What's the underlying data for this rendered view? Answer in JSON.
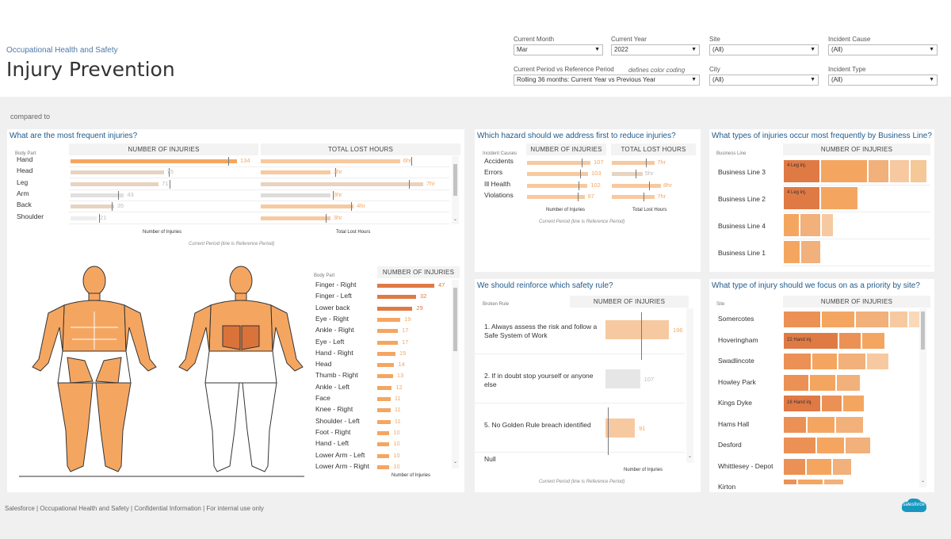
{
  "header": {
    "subtitle": "Occupational Health and Safety",
    "title": "Injury Prevention",
    "filters": [
      {
        "label": "Current Month",
        "value": "Mar"
      },
      {
        "label": "Current Year",
        "value": "2022"
      },
      {
        "label": "Site",
        "value": "(All)"
      },
      {
        "label": "Incident Cause",
        "value": "(All)"
      },
      {
        "label": "Current Period vs Reference Period",
        "value": "Rolling 36 months: Current Year vs Previous Year"
      },
      {
        "label": "City",
        "value": "(All)"
      },
      {
        "label": "Incident Type",
        "value": "(All)"
      }
    ],
    "hint": "defines color coding",
    "arrow": "▼"
  },
  "compared": "compared to",
  "colors": {
    "accent": "#f4a661",
    "light": "#f7c9a0",
    "pale": "#e8d3c0",
    "dark": "#e07a45",
    "deep": "#c85a2a",
    "title_blue": "#1f5a8c"
  },
  "injuries": {
    "title": "What are the most frequent injuries?",
    "dim_label": "Body Part",
    "col1": "NUMBER OF INJURIES",
    "col2": "TOTAL LOST HOURS",
    "axis1": "Number of Injuries",
    "axis2": "Total Lost Hours",
    "footnote": "Current Period  (line is Reference Period)",
    "rows": [
      {
        "label": "Hand",
        "value": "134",
        "hours": "6hr"
      },
      {
        "label": "Head",
        "value": "75",
        "hours": "3hr"
      },
      {
        "label": "Leg",
        "value": "71",
        "hours": "7hr"
      },
      {
        "label": "Arm",
        "value": "43",
        "hours": "3hr"
      },
      {
        "label": "Back",
        "value": "35",
        "hours": "4hr"
      },
      {
        "label": "Shoulder",
        "value": "21",
        "hours": "3hr"
      }
    ]
  },
  "bodyparts": {
    "dim_label": "Body Part",
    "col": "NUMBER OF INJURIES",
    "axis": "Number of Injuries",
    "rows": [
      {
        "label": "Finger - Right",
        "value": "47"
      },
      {
        "label": "Finger - Left",
        "value": "32"
      },
      {
        "label": "Lower back",
        "value": "29"
      },
      {
        "label": "Eye - Right",
        "value": "19"
      },
      {
        "label": "Ankle - Right",
        "value": "17"
      },
      {
        "label": "Eye - Left",
        "value": "17"
      },
      {
        "label": "Hand - Right",
        "value": "15"
      },
      {
        "label": "Head",
        "value": "14"
      },
      {
        "label": "Thumb - Right",
        "value": "13"
      },
      {
        "label": "Ankle - Left",
        "value": "12"
      },
      {
        "label": "Face",
        "value": "11"
      },
      {
        "label": "Knee - Right",
        "value": "11"
      },
      {
        "label": "Shoulder - Left",
        "value": "11"
      },
      {
        "label": "Foot - Right",
        "value": "10"
      },
      {
        "label": "Hand - Left",
        "value": "10"
      },
      {
        "label": "Lower Arm - Left",
        "value": "10"
      },
      {
        "label": "Lower Arm - Right",
        "value": "10"
      }
    ]
  },
  "hazard": {
    "title": "Which hazard should we address first to reduce injuries?",
    "dim_label": "Incident Causes",
    "col1": "NUMBER OF INJURIES",
    "col2": "TOTAL LOST HOURS",
    "axis1": "Number of Injuries",
    "axis2": "Total Lost Hours",
    "footnote": "Current Period  (line is Reference Period)",
    "rows": [
      {
        "label": "Accidents",
        "value": "107",
        "hours": "7hr"
      },
      {
        "label": "Errors",
        "value": "103",
        "hours": "5hr"
      },
      {
        "label": "Ill Health",
        "value": "102",
        "hours": "8hr"
      },
      {
        "label": "Violations",
        "value": "97",
        "hours": "7hr"
      }
    ]
  },
  "business": {
    "title": "What types of injuries occur most frequently by Business Line?",
    "dim_label": "Business Line",
    "col": "NUMBER OF INJURIES",
    "rows": [
      {
        "label": "Business Line 3",
        "cell": "4 Leg inj."
      },
      {
        "label": "Business Line 2",
        "cell": "4 Leg inj."
      },
      {
        "label": "Business Line 4",
        "cell": ""
      },
      {
        "label": "Business Line 1",
        "cell": ""
      }
    ]
  },
  "rules": {
    "title": "We should reinforce which safety rule?",
    "dim_label": "Broken Rule",
    "col": "NUMBER OF INJURIES",
    "axis": "Number of Injuries",
    "footnote": "Current Period  (line is Reference Period)",
    "rows": [
      {
        "label": "1. Always assess the risk and follow a Safe System of Work",
        "value": "196"
      },
      {
        "label": "2. If in doubt stop yourself or anyone else",
        "value": "107"
      },
      {
        "label": "5. No Golden Rule breach identified",
        "value": "91"
      },
      {
        "label": "Null",
        "value": ""
      }
    ]
  },
  "sites": {
    "title": "What type of injury should we focus on as a priority by site?",
    "dim_label": "Site",
    "col": "NUMBER OF INJURIES",
    "rows": [
      {
        "label": "Somercotes",
        "cell": ""
      },
      {
        "label": "Hoveringham",
        "cell": "22 Hand inj."
      },
      {
        "label": "Swadlincote",
        "cell": ""
      },
      {
        "label": "Howley Park",
        "cell": ""
      },
      {
        "label": "Kings Dyke",
        "cell": "16 Hand inj."
      },
      {
        "label": "Hams Hall",
        "cell": ""
      },
      {
        "label": "Desford",
        "cell": ""
      },
      {
        "label": "Whittlesey - Depot",
        "cell": ""
      },
      {
        "label": "Kirton",
        "cell": ""
      }
    ]
  },
  "footer": "Salesforce | Occupational Health and Safety | Confidential Information | For internal use only",
  "logo_text": "salesforce"
}
